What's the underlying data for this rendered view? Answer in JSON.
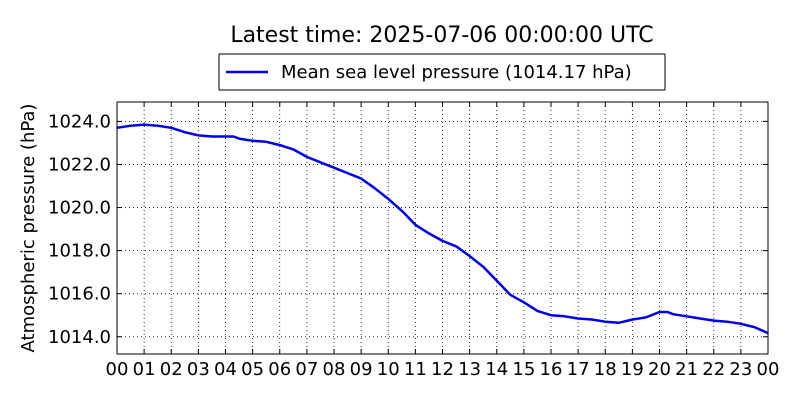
{
  "chart_data": {
    "type": "line",
    "title": "Latest time: 2025-07-06 00:00:00 UTC",
    "ylabel": "Atmospheric pressure (hPa)",
    "xlabel": "",
    "ylim": [
      1013.2,
      1024.9
    ],
    "x_tick_labels": [
      "00",
      "01",
      "02",
      "03",
      "04",
      "05",
      "06",
      "07",
      "08",
      "09",
      "10",
      "11",
      "12",
      "13",
      "14",
      "15",
      "16",
      "17",
      "18",
      "19",
      "20",
      "21",
      "22",
      "23",
      "00"
    ],
    "y_ticks": [
      1014.0,
      1016.0,
      1018.0,
      1020.0,
      1022.0,
      1024.0
    ],
    "y_tick_labels": [
      "1014.0",
      "1016.0",
      "1018.0",
      "1020.0",
      "1022.0",
      "1024.0"
    ],
    "grid": true,
    "legend": "top-center",
    "series": [
      {
        "name": "Mean sea level pressure (1014.17 hPa)",
        "color": "#0000ee",
        "x": [
          0,
          0.5,
          1,
          1.5,
          2,
          2.5,
          3,
          3.5,
          4,
          4.3,
          4.5,
          5,
          5.5,
          6,
          6.5,
          7,
          7.5,
          8,
          8.5,
          9,
          9.5,
          10,
          10.5,
          11,
          11.5,
          12,
          12.5,
          13,
          13.5,
          14,
          14.5,
          15,
          15.5,
          16,
          16.5,
          17,
          17.5,
          18,
          18.5,
          19,
          19.5,
          20,
          20.3,
          20.5,
          21,
          21.5,
          22,
          22.5,
          23,
          23.5,
          24
        ],
        "values": [
          1023.7,
          1023.8,
          1023.85,
          1023.8,
          1023.7,
          1023.5,
          1023.35,
          1023.3,
          1023.3,
          1023.3,
          1023.2,
          1023.1,
          1023.05,
          1022.9,
          1022.7,
          1022.35,
          1022.1,
          1021.85,
          1021.6,
          1021.35,
          1020.9,
          1020.4,
          1019.85,
          1019.2,
          1018.8,
          1018.45,
          1018.2,
          1017.75,
          1017.25,
          1016.6,
          1015.95,
          1015.6,
          1015.2,
          1015.0,
          1014.95,
          1014.85,
          1014.8,
          1014.7,
          1014.65,
          1014.8,
          1014.9,
          1015.15,
          1015.15,
          1015.05,
          1014.95,
          1014.85,
          1014.75,
          1014.7,
          1014.6,
          1014.45,
          1014.17
        ]
      }
    ]
  }
}
